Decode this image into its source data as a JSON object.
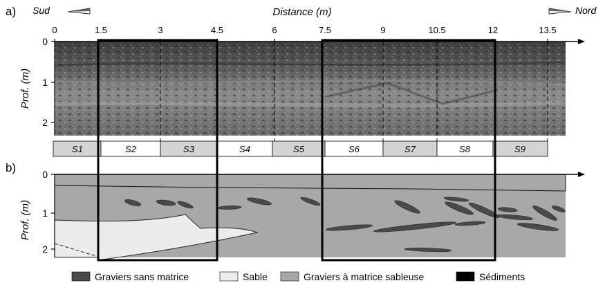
{
  "panel_a": {
    "label": "a)",
    "south_label": "Sud",
    "north_label": "Nord",
    "distance_title": "Distance (m)",
    "distance_ticks": [
      "0",
      "1.5",
      "3",
      "4.5",
      "6",
      "7.5",
      "9",
      "10.5",
      "12",
      "13.5"
    ],
    "depth_label": "Prof. (m)",
    "depth_ticks": [
      "0",
      "1",
      "2"
    ]
  },
  "sections": [
    "S1",
    "S2",
    "S3",
    "S4",
    "S5",
    "S6",
    "S7",
    "S8",
    "S9"
  ],
  "panel_b": {
    "label": "b)",
    "depth_label": "Prof. (m)",
    "depth_ticks": [
      "0",
      "1",
      "2"
    ]
  },
  "legend": {
    "items": [
      {
        "label": "Graviers sans matrice",
        "color": "#4a4a4a"
      },
      {
        "label": "Sable",
        "color": "#ececec"
      },
      {
        "label": "Graviers à matrice sableuse",
        "color": "#a8a8a8"
      },
      {
        "label": "Sédiments",
        "color": "#000000"
      }
    ]
  }
}
